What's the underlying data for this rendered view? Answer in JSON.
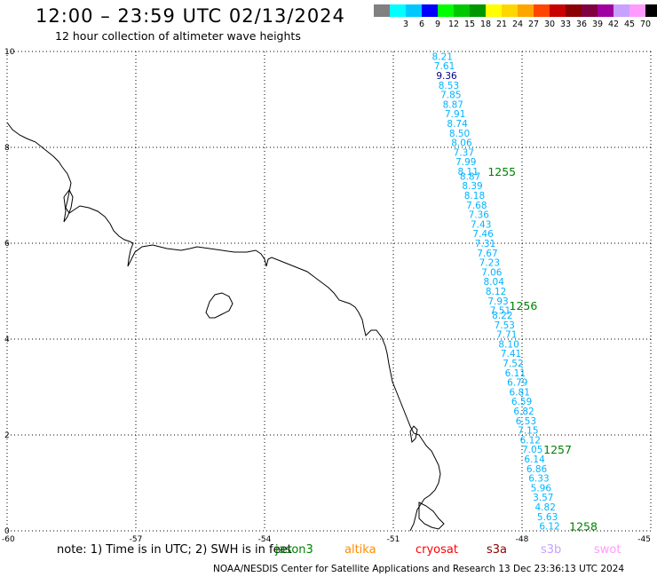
{
  "header": {
    "title": "12:00 – 23:59 UTC 02/13/2024",
    "subtitle": "12 hour collection of altimeter wave heights"
  },
  "color_scale": {
    "unit": "(ft)",
    "bins": [
      {
        "label": "",
        "color": "#808080"
      },
      {
        "label": "3",
        "color": "#00ffff"
      },
      {
        "label": "6",
        "color": "#00c8ff"
      },
      {
        "label": "9",
        "color": "#0000ff"
      },
      {
        "label": "12",
        "color": "#00ff00"
      },
      {
        "label": "15",
        "color": "#00c800"
      },
      {
        "label": "18",
        "color": "#009600"
      },
      {
        "label": "21",
        "color": "#ffff00"
      },
      {
        "label": "24",
        "color": "#ffd700"
      },
      {
        "label": "27",
        "color": "#ffa500"
      },
      {
        "label": "30",
        "color": "#ff4500"
      },
      {
        "label": "33",
        "color": "#c80000"
      },
      {
        "label": "36",
        "color": "#8b0000"
      },
      {
        "label": "39",
        "color": "#800040"
      },
      {
        "label": "42",
        "color": "#a000a0"
      },
      {
        "label": "45",
        "color": "#c8a0ff"
      },
      {
        "label": "70",
        "color": "#ff9bff"
      },
      {
        "label": "",
        "color": "#000000"
      }
    ]
  },
  "axes": {
    "x_ticks": [
      "-60",
      "-57",
      "-54",
      "-51",
      "-48",
      "-45"
    ],
    "y_ticks": [
      "0",
      "2",
      "4",
      "6",
      "8",
      "10"
    ],
    "x_range": [
      -60,
      -45
    ],
    "y_range": [
      0,
      10
    ]
  },
  "chart_data": {
    "type": "scatter",
    "track_color": "#00b4ff",
    "time_label_color": "#008000",
    "points": [
      {
        "lon": -50.1,
        "lat": 9.9,
        "swh": "8.21"
      },
      {
        "lon": -50.05,
        "lat": 9.7,
        "swh": "7.61"
      },
      {
        "lon": -50.0,
        "lat": 9.5,
        "swh": "9.36",
        "color": "#000080"
      },
      {
        "lon": -49.95,
        "lat": 9.3,
        "swh": "8.53"
      },
      {
        "lon": -49.9,
        "lat": 9.1,
        "swh": "7.85"
      },
      {
        "lon": -49.85,
        "lat": 8.9,
        "swh": "8.87"
      },
      {
        "lon": -49.8,
        "lat": 8.7,
        "swh": "7.91"
      },
      {
        "lon": -49.75,
        "lat": 8.5,
        "swh": "8.74"
      },
      {
        "lon": -49.7,
        "lat": 8.3,
        "swh": "8.50"
      },
      {
        "lon": -49.65,
        "lat": 8.1,
        "swh": "8.06"
      },
      {
        "lon": -49.6,
        "lat": 7.9,
        "swh": "7.37"
      },
      {
        "lon": -49.55,
        "lat": 7.7,
        "swh": "7.99"
      },
      {
        "lon": -49.5,
        "lat": 7.5,
        "swh": "8.11"
      },
      {
        "lon": -49.45,
        "lat": 7.4,
        "swh": "8.87"
      },
      {
        "lon": -49.4,
        "lat": 7.2,
        "swh": "8.39"
      },
      {
        "lon": -49.35,
        "lat": 7.0,
        "swh": "8.18"
      },
      {
        "lon": -49.3,
        "lat": 6.8,
        "swh": "7.68"
      },
      {
        "lon": -49.25,
        "lat": 6.6,
        "swh": "7.36"
      },
      {
        "lon": -49.2,
        "lat": 6.4,
        "swh": "7.43"
      },
      {
        "lon": -49.15,
        "lat": 6.2,
        "swh": "7.46"
      },
      {
        "lon": -49.1,
        "lat": 6.0,
        "swh": "7.31"
      },
      {
        "lon": -49.05,
        "lat": 5.8,
        "swh": "7.67"
      },
      {
        "lon": -49.0,
        "lat": 5.6,
        "swh": "7.23"
      },
      {
        "lon": -48.95,
        "lat": 5.4,
        "swh": "7.06"
      },
      {
        "lon": -48.9,
        "lat": 5.2,
        "swh": "8.04"
      },
      {
        "lon": -48.85,
        "lat": 5.0,
        "swh": "8.12"
      },
      {
        "lon": -48.8,
        "lat": 4.8,
        "swh": "7.93"
      },
      {
        "lon": -48.75,
        "lat": 4.6,
        "swh": "7.51"
      },
      {
        "lon": -48.7,
        "lat": 4.5,
        "swh": "8.22"
      },
      {
        "lon": -48.65,
        "lat": 4.3,
        "swh": "7.53"
      },
      {
        "lon": -48.6,
        "lat": 4.1,
        "swh": "7.71"
      },
      {
        "lon": -48.55,
        "lat": 3.9,
        "swh": "8.10"
      },
      {
        "lon": -48.5,
        "lat": 3.7,
        "swh": "7.41"
      },
      {
        "lon": -48.45,
        "lat": 3.5,
        "swh": "7.52"
      },
      {
        "lon": -48.4,
        "lat": 3.3,
        "swh": "6.11"
      },
      {
        "lon": -48.35,
        "lat": 3.1,
        "swh": "6.79"
      },
      {
        "lon": -48.3,
        "lat": 2.9,
        "swh": "6.81"
      },
      {
        "lon": -48.25,
        "lat": 2.7,
        "swh": "6.59"
      },
      {
        "lon": -48.2,
        "lat": 2.5,
        "swh": "6.82"
      },
      {
        "lon": -48.15,
        "lat": 2.3,
        "swh": "6.53"
      },
      {
        "lon": -48.1,
        "lat": 2.1,
        "swh": "7.15"
      },
      {
        "lon": -48.05,
        "lat": 1.9,
        "swh": "6.12"
      },
      {
        "lon": -48.0,
        "lat": 1.7,
        "swh": "7.05"
      },
      {
        "lon": -47.95,
        "lat": 1.5,
        "swh": "6.14"
      },
      {
        "lon": -47.9,
        "lat": 1.3,
        "swh": "6.86"
      },
      {
        "lon": -47.85,
        "lat": 1.1,
        "swh": "6.33"
      },
      {
        "lon": -47.8,
        "lat": 0.9,
        "swh": "5.96"
      },
      {
        "lon": -47.75,
        "lat": 0.7,
        "swh": "3.57"
      },
      {
        "lon": -47.7,
        "lat": 0.5,
        "swh": "4.82"
      },
      {
        "lon": -47.65,
        "lat": 0.3,
        "swh": "5.63"
      },
      {
        "lon": -47.6,
        "lat": 0.1,
        "swh": "6.12"
      }
    ],
    "time_labels": [
      {
        "lon": -48.8,
        "lat": 7.5,
        "text": "1255"
      },
      {
        "lon": -48.3,
        "lat": 4.7,
        "text": "1256"
      },
      {
        "lon": -47.5,
        "lat": 1.7,
        "text": "1257"
      },
      {
        "lon": -46.9,
        "lat": 0.1,
        "text": "1258"
      }
    ]
  },
  "footer": {
    "note": "note:  1) Time is in UTC; 2) SWH is in feet",
    "satellites": [
      {
        "name": "jason3",
        "color": "#008000"
      },
      {
        "name": "altika",
        "color": "#ff8c00"
      },
      {
        "name": "cryosat",
        "color": "#ff0000"
      },
      {
        "name": "s3a",
        "color": "#8b0000"
      },
      {
        "name": "s3b",
        "color": "#c8a0ff"
      },
      {
        "name": "swot",
        "color": "#ff9bff"
      }
    ],
    "credit": "NOAA/NESDIS Center for Satellite Applications and Research    13 Dec 23:36:13 UTC 2024"
  }
}
